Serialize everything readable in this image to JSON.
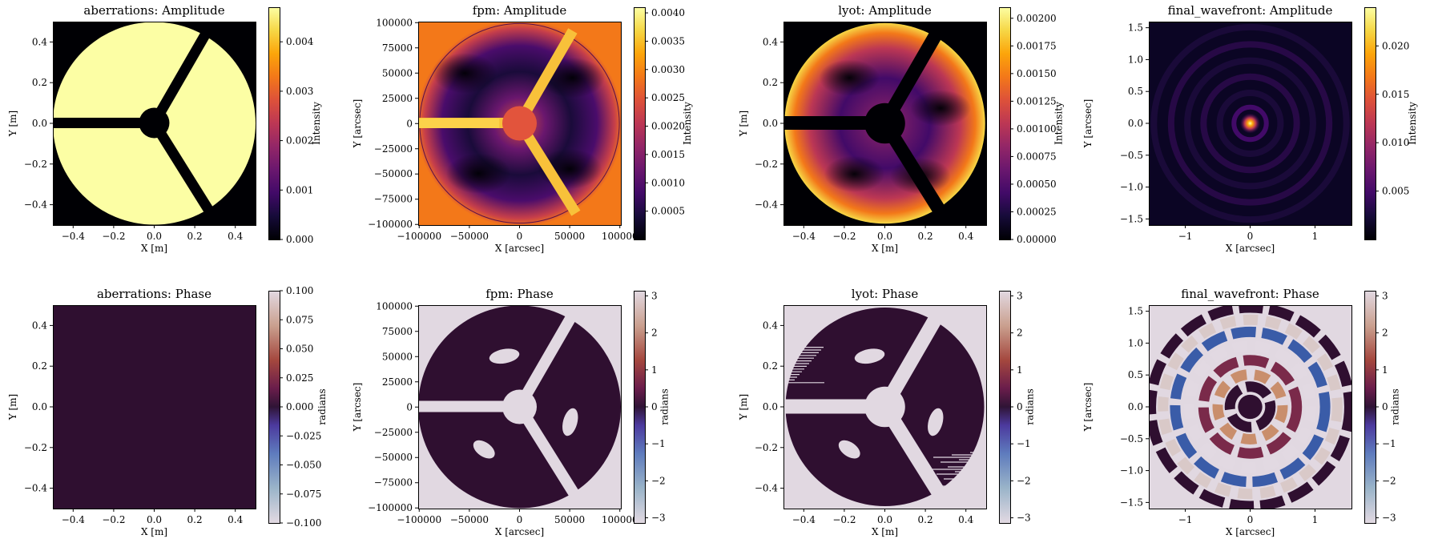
{
  "chart_data": [
    {
      "type": "heatmap",
      "title": "aberrations: Amplitude",
      "xlabel": "X [m]",
      "ylabel": "Y [m]",
      "cbar_label": "Intensity",
      "xticks": [
        "−0.4",
        "−0.2",
        "0.0",
        "0.2",
        "0.4"
      ],
      "yticks": [
        "0.4",
        "0.2",
        "0.0",
        "−0.2",
        "−0.4"
      ],
      "cbar_ticks": [
        "0.004",
        "0.003",
        "0.002",
        "0.001",
        "0.000"
      ],
      "cbar_range": [
        0,
        0.0047
      ],
      "colormap": "inferno",
      "pattern": "aperture-amplitude"
    },
    {
      "type": "heatmap",
      "title": "fpm: Amplitude",
      "xlabel": "X [arcsec]",
      "ylabel": "Y [arcsec]",
      "cbar_label": "Intensity",
      "xticks": [
        "−100000",
        "−50000",
        "0",
        "50000",
        "100000"
      ],
      "yticks": [
        "100000",
        "75000",
        "50000",
        "25000",
        "0",
        "−25000",
        "−50000",
        "−75000",
        "−100000"
      ],
      "cbar_ticks": [
        "0.0040",
        "0.0035",
        "0.0030",
        "0.0025",
        "0.0020",
        "0.0015",
        "0.0010",
        "0.0005"
      ],
      "cbar_range": [
        0,
        0.0041
      ],
      "colormap": "inferno",
      "pattern": "fpm-amplitude"
    },
    {
      "type": "heatmap",
      "title": "lyot: Amplitude",
      "xlabel": "X [m]",
      "ylabel": "Y [m]",
      "cbar_label": "Intensity",
      "xticks": [
        "−0.4",
        "−0.2",
        "0.0",
        "0.2",
        "0.4"
      ],
      "yticks": [
        "0.4",
        "0.2",
        "0.0",
        "−0.2",
        "−0.4"
      ],
      "cbar_ticks": [
        "0.00200",
        "0.00175",
        "0.00150",
        "0.00125",
        "0.00100",
        "0.00075",
        "0.00050",
        "0.00025",
        "0.00000"
      ],
      "cbar_range": [
        0,
        0.0021
      ],
      "colormap": "inferno",
      "pattern": "lyot-amplitude"
    },
    {
      "type": "heatmap",
      "title": "final_wavefront: Amplitude",
      "xlabel": "X [arcsec]",
      "ylabel": "Y [arcsec]",
      "cbar_label": "Intensity",
      "xticks": [
        "−1",
        "0",
        "1"
      ],
      "yticks": [
        "1.5",
        "1.0",
        "0.5",
        "0.0",
        "−0.5",
        "−1.0",
        "−1.5"
      ],
      "cbar_ticks": [
        "0.020",
        "0.015",
        "0.010",
        "0.005"
      ],
      "cbar_range": [
        0,
        0.024
      ],
      "colormap": "inferno",
      "pattern": "psf-amplitude"
    },
    {
      "type": "heatmap",
      "title": "aberrations: Phase",
      "xlabel": "X [m]",
      "ylabel": "Y [m]",
      "cbar_label": "radians",
      "xticks": [
        "−0.4",
        "−0.2",
        "0.0",
        "0.2",
        "0.4"
      ],
      "yticks": [
        "0.4",
        "0.2",
        "0.0",
        "−0.2",
        "−0.4"
      ],
      "cbar_ticks": [
        "0.100",
        "0.075",
        "0.050",
        "0.025",
        "0.000",
        "−0.025",
        "−0.050",
        "−0.075",
        "−0.100"
      ],
      "cbar_range": [
        -0.1,
        0.1
      ],
      "colormap": "twilight_shifted",
      "pattern": "uniform-phase"
    },
    {
      "type": "heatmap",
      "title": "fpm: Phase",
      "xlabel": "X [arcsec]",
      "ylabel": "Y [arcsec]",
      "cbar_label": "radians",
      "xticks": [
        "−100000",
        "−50000",
        "0",
        "50000",
        "100000"
      ],
      "yticks": [
        "100000",
        "75000",
        "50000",
        "25000",
        "0",
        "−25000",
        "−50000",
        "−75000",
        "−100000"
      ],
      "cbar_ticks": [
        "3",
        "2",
        "1",
        "0",
        "−1",
        "−2",
        "−3"
      ],
      "cbar_range": [
        -3.14,
        3.14
      ],
      "colormap": "twilight_shifted",
      "pattern": "fpm-phase"
    },
    {
      "type": "heatmap",
      "title": "lyot: Phase",
      "xlabel": "X [m]",
      "ylabel": "Y [m]",
      "cbar_label": "radians",
      "xticks": [
        "−0.4",
        "−0.2",
        "0.0",
        "0.2",
        "0.4"
      ],
      "yticks": [
        "0.4",
        "0.2",
        "0.0",
        "−0.2",
        "−0.4"
      ],
      "cbar_ticks": [
        "3",
        "2",
        "1",
        "0",
        "−1",
        "−2",
        "−3"
      ],
      "cbar_range": [
        -3.14,
        3.14
      ],
      "colormap": "twilight_shifted",
      "pattern": "lyot-phase"
    },
    {
      "type": "heatmap",
      "title": "final_wavefront: Phase",
      "xlabel": "X [arcsec]",
      "ylabel": "Y [arcsec]",
      "cbar_label": "radians",
      "xticks": [
        "−1",
        "0",
        "1"
      ],
      "yticks": [
        "1.5",
        "1.0",
        "0.5",
        "0.0",
        "−0.5",
        "−1.0",
        "−1.5"
      ],
      "cbar_ticks": [
        "3",
        "2",
        "1",
        "0",
        "−1",
        "−2",
        "−3"
      ],
      "cbar_range": [
        -3.14,
        3.14
      ],
      "colormap": "twilight_shifted",
      "pattern": "psf-phase"
    }
  ],
  "colors": {
    "aperture_fill": "#fcfea4",
    "phase_dark": "#2f0f30",
    "phase_light": "#e1d8e1",
    "background": "#000004"
  }
}
